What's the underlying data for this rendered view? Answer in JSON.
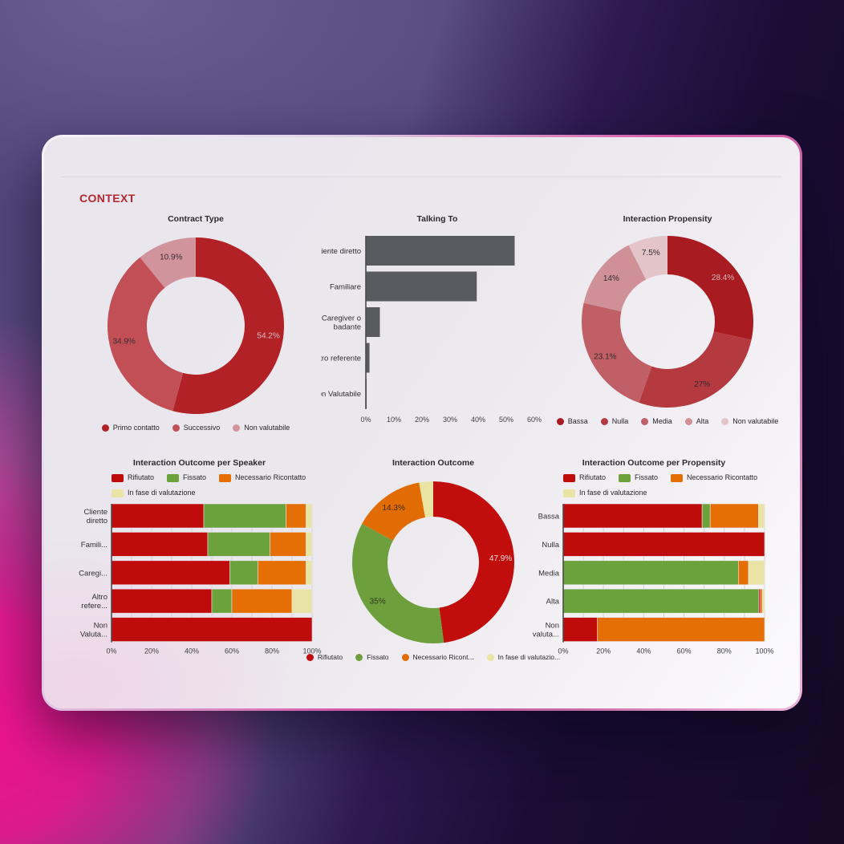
{
  "page": {
    "section_title": "CONTEXT"
  },
  "chart_data": [
    {
      "id": "contract-type",
      "type": "donut",
      "title": "Contract Type",
      "legend_position": "bottom",
      "slices": [
        {
          "label": "Primo contatto",
          "value": 54.2,
          "display": "54.2%",
          "color": "#b22126",
          "label_color": "#d8bfc1"
        },
        {
          "label": "Successivo",
          "value": 34.9,
          "display": "34.9%",
          "color": "#c14f55",
          "label_color": "#363032"
        },
        {
          "label": "Non valutabile",
          "value": 10.9,
          "display": "10.9%",
          "color": "#d2949c",
          "label_color": "#363032"
        }
      ]
    },
    {
      "id": "talking-to",
      "type": "hbar",
      "title": "Talking To",
      "bar_color": "#595a60",
      "categories": [
        [
          "Cliente diretto"
        ],
        [
          "Familiare"
        ],
        [
          "Caregiver o",
          "badante"
        ],
        [
          "Altro referente"
        ],
        [
          "Non Valutabile"
        ]
      ],
      "values": [
        53,
        39.5,
        5,
        1.3,
        0.3
      ],
      "xmax": 60,
      "ticks": [
        "0%",
        "10%",
        "20%",
        "30%",
        "40%",
        "50%",
        "60%"
      ]
    },
    {
      "id": "interaction-propensity",
      "type": "donut",
      "title": "Interaction Propensity",
      "legend_position": "bottom",
      "slices": [
        {
          "label": "Bassa",
          "value": 28.4,
          "display": "28.4%",
          "color": "#a81b21",
          "label_color": "#d4b8b8"
        },
        {
          "label": "Nulla",
          "value": 27.0,
          "display": "27%",
          "color": "#b43a40",
          "label_color": "#332d2e"
        },
        {
          "label": "Media",
          "value": 23.1,
          "display": "23.1%",
          "color": "#c05f65",
          "label_color": "#332d2e"
        },
        {
          "label": "Alta",
          "value": 14.0,
          "display": "14%",
          "color": "#cf9097",
          "label_color": "#332d2e"
        },
        {
          "label": "Non valutabile",
          "value": 7.5,
          "display": "7.5%",
          "color": "#e2c4c9",
          "label_color": "#332d2e"
        }
      ]
    },
    {
      "id": "outcome-per-speaker",
      "type": "stacked",
      "title": "Interaction Outcome per Speaker",
      "legend_position": "top",
      "series": [
        {
          "name": "Rifiutato",
          "color": "#c00b0b"
        },
        {
          "name": "Fissato",
          "color": "#6ca23c"
        },
        {
          "name": "Necessario Ricontatto",
          "color": "#e66f05"
        },
        {
          "name": "In fase di valutazione",
          "color": "#e9e3a6"
        }
      ],
      "rows": [
        {
          "label": [
            "Cliente",
            "diretto"
          ],
          "segments": [
            [
              0,
              46
            ],
            [
              1,
              41
            ],
            [
              2,
              10
            ],
            [
              3,
              3
            ]
          ]
        },
        {
          "label": [
            "Famili..."
          ],
          "segments": [
            [
              0,
              48
            ],
            [
              1,
              31
            ],
            [
              2,
              18
            ],
            [
              3,
              3
            ]
          ]
        },
        {
          "label": [
            "Caregi..."
          ],
          "segments": [
            [
              0,
              59
            ],
            [
              1,
              14
            ],
            [
              2,
              24
            ],
            [
              3,
              3
            ]
          ]
        },
        {
          "label": [
            "Altro",
            "refere..."
          ],
          "segments": [
            [
              0,
              50
            ],
            [
              1,
              10
            ],
            [
              2,
              30
            ],
            [
              3,
              10
            ]
          ]
        },
        {
          "label": [
            "Non",
            "Valuta..."
          ],
          "segments": [
            [
              0,
              100
            ]
          ]
        }
      ],
      "ticks": [
        "0%",
        "20%",
        "40%",
        "60%",
        "80%",
        "100%"
      ],
      "grid_step": 10
    },
    {
      "id": "interaction-outcome",
      "type": "donut",
      "title": "Interaction Outcome",
      "legend_position": "bottom",
      "slices": [
        {
          "label": "Rifiutato",
          "value": 47.9,
          "display": "47.9%",
          "color": "#c20d0d",
          "label_color": "#f0dddd"
        },
        {
          "label": "Fissato",
          "value": 35.0,
          "display": "35%",
          "color": "#6da03c",
          "label_color": "#2c3520"
        },
        {
          "label": "Necessario Ricont...",
          "value": 14.3,
          "display": "14.3%",
          "color": "#e16c04",
          "label_color": "#3d2a10"
        },
        {
          "label": "In fase di valutazio...",
          "value": 2.8,
          "display": "",
          "color": "#e9e3a4",
          "label_color": "#333"
        }
      ]
    },
    {
      "id": "outcome-per-propensity",
      "type": "stacked",
      "title": "Interaction Outcome per Propensity",
      "legend_position": "top",
      "series": [
        {
          "name": "Rifiutato",
          "color": "#c00b0b"
        },
        {
          "name": "Fissato",
          "color": "#6ca23c"
        },
        {
          "name": "Necessario Ricontatto",
          "color": "#e66f05"
        },
        {
          "name": "In fase di valutazione",
          "color": "#e9e3a6"
        }
      ],
      "rows": [
        {
          "label": [
            "Bassa"
          ],
          "segments": [
            [
              0,
              69
            ],
            [
              1,
              4
            ],
            [
              2,
              24
            ],
            [
              3,
              3
            ]
          ]
        },
        {
          "label": [
            "Nulla"
          ],
          "segments": [
            [
              0,
              100
            ]
          ]
        },
        {
          "label": [
            "Media"
          ],
          "segments": [
            [
              1,
              87
            ],
            [
              2,
              5
            ],
            [
              3,
              8
            ]
          ]
        },
        {
          "label": [
            "Alta"
          ],
          "segments": [
            [
              1,
              97.2
            ],
            [
              0,
              0.8
            ],
            [
              2,
              0.9
            ],
            [
              3,
              1.1
            ]
          ]
        },
        {
          "label": [
            "Non",
            "valuta..."
          ],
          "segments": [
            [
              0,
              17
            ],
            [
              2,
              83
            ]
          ]
        }
      ],
      "ticks": [
        "0%",
        "20%",
        "40%",
        "60%",
        "80%",
        "100%"
      ],
      "grid_step": 10
    }
  ]
}
